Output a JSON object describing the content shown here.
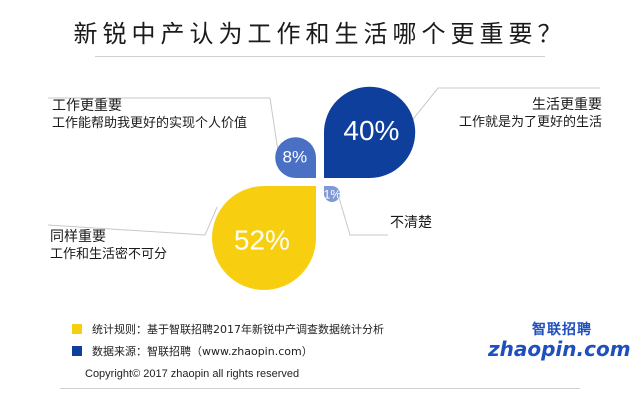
{
  "title": "新锐中产认为工作和生活哪个更重要？",
  "colors": {
    "yellow": "#F8CF10",
    "navy": "#0E3F9C",
    "blue": "#4A70C4",
    "lightblue": "#7F99D6",
    "leader": "#c8c8c8"
  },
  "chart_data": {
    "type": "pie",
    "slices": [
      {
        "label": "生活更重要",
        "desc": "工作就是为了更好的生活",
        "value": 40,
        "value_label": "40%"
      },
      {
        "label": "工作更重要",
        "desc": "工作能帮助我更好的实现个人价值",
        "value": 8,
        "value_label": "8%"
      },
      {
        "label": "同样重要",
        "desc": "工作和生活密不可分",
        "value": 52,
        "value_label": "52%"
      },
      {
        "label": "不清楚",
        "desc": "",
        "value": 1,
        "value_label": "1%"
      }
    ]
  },
  "notes": [
    {
      "icon": "yellow-square-icon",
      "text": "统计规则：基于智联招聘2017年新锐中产调查数据统计分析"
    },
    {
      "icon": "navy-square-icon",
      "text": "数据来源：智联招聘（www.zhaopin.com）"
    }
  ],
  "logo": {
    "cn": "智联招聘",
    "en": "zhaopin.com"
  },
  "copyright": "Copyright© 2017 zhaopin all rights reserved"
}
